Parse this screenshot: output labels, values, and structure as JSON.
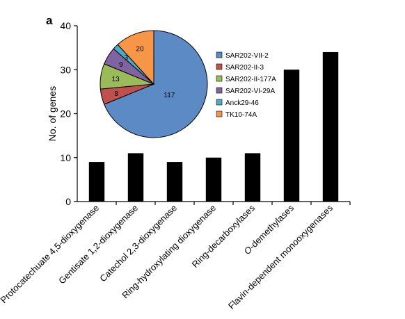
{
  "panel_label": "a",
  "chart_data": [
    {
      "type": "bar",
      "ylabel": "No. of genes",
      "ylim": [
        0,
        40
      ],
      "yticks": [
        0,
        10,
        20,
        30,
        40
      ],
      "bar_color": "#000000",
      "categories": [
        "Protocatechuate 4,5-dioxygenase",
        "Gentisate 1,2-dioxygenase",
        "Catechol 2,3-dioxygenase",
        "Ring-hydroxylating dioxygenase",
        "Ring-decarboxylases",
        "O-demethylases",
        "Flavin-dependent monooxygenases"
      ],
      "values": [
        9,
        11,
        9,
        10,
        11,
        30,
        34
      ]
    },
    {
      "type": "pie",
      "legend_position": "right",
      "slices": [
        {
          "label": "SAR202-VII-2",
          "value": 117,
          "color": "#5B8AC5"
        },
        {
          "label": "SAR202-II-3",
          "value": 8,
          "color": "#C0504D"
        },
        {
          "label": "SAR202-II-177A",
          "value": 13,
          "color": "#9BBB59"
        },
        {
          "label": "SAR202-VI-29A",
          "value": 9,
          "color": "#8064A2"
        },
        {
          "label": "Anck29-46",
          "value": 3,
          "color": "#4BACC6"
        },
        {
          "label": "TK10-74A",
          "value": 20,
          "color": "#F79646"
        }
      ]
    }
  ]
}
